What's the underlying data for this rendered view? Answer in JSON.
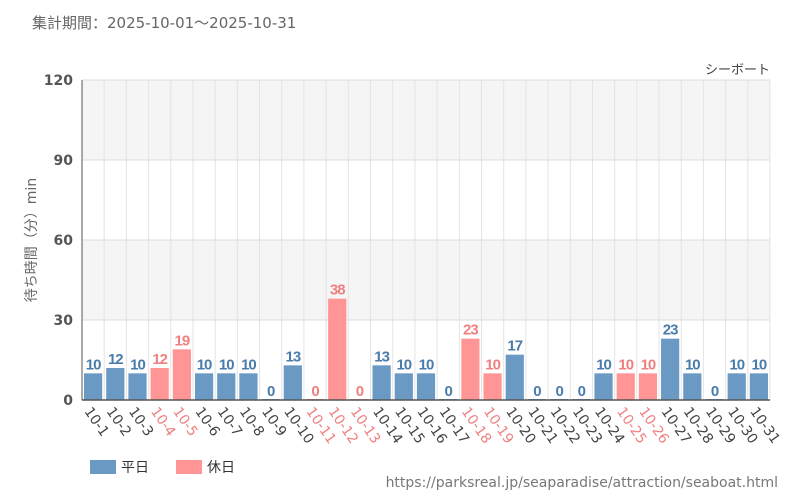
{
  "header": {
    "period_label": "集計期間：2025-10-01～2025-10-31",
    "series_name": "シーボート"
  },
  "chart_data": {
    "type": "bar",
    "title": "",
    "ylabel": "待ち時間（分）min",
    "ylim": [
      0,
      120
    ],
    "yticks": [
      0,
      30,
      60,
      90,
      120
    ],
    "categories": [
      "10-1",
      "10-2",
      "10-3",
      "10-4",
      "10-5",
      "10-6",
      "10-7",
      "10-8",
      "10-9",
      "10-10",
      "10-11",
      "10-12",
      "10-13",
      "10-14",
      "10-15",
      "10-16",
      "10-17",
      "10-18",
      "10-19",
      "10-20",
      "10-21",
      "10-22",
      "10-23",
      "10-24",
      "10-25",
      "10-26",
      "10-27",
      "10-28",
      "10-29",
      "10-30",
      "10-31"
    ],
    "values": [
      10,
      12,
      10,
      12,
      19,
      10,
      10,
      10,
      0,
      13,
      0,
      38,
      0,
      13,
      10,
      10,
      0,
      23,
      10,
      17,
      0,
      0,
      0,
      10,
      10,
      10,
      23,
      10,
      0,
      10,
      10
    ],
    "day_types": [
      "weekday",
      "weekday",
      "weekday",
      "holiday",
      "holiday",
      "weekday",
      "weekday",
      "weekday",
      "weekday",
      "weekday",
      "holiday",
      "holiday",
      "holiday",
      "weekday",
      "weekday",
      "weekday",
      "weekday",
      "holiday",
      "holiday",
      "weekday",
      "weekday",
      "weekday",
      "weekday",
      "weekday",
      "holiday",
      "holiday",
      "weekday",
      "weekday",
      "weekday",
      "weekday",
      "weekday"
    ],
    "legend": [
      {
        "key": "weekday",
        "label": "平日",
        "color": "#6a9ac4"
      },
      {
        "key": "holiday",
        "label": "休日",
        "color": "#ff9595"
      }
    ],
    "label_colors": {
      "weekday": "#4a7cab",
      "holiday": "#f08080"
    }
  },
  "footer": {
    "source_url": "https://parksreal.jp/seaparadise/attraction/seaboat.html"
  }
}
